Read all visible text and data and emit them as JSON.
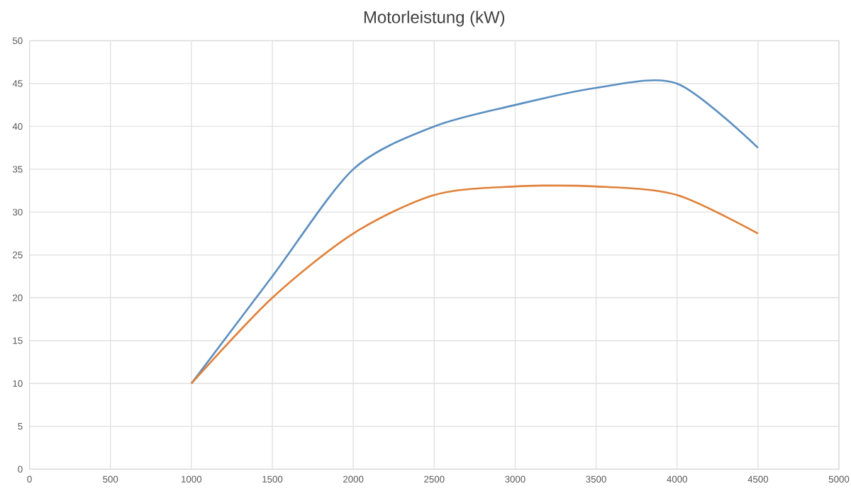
{
  "chart_data": {
    "type": "line",
    "title": "Motorleistung (kW)",
    "x": [
      1000,
      1500,
      2000,
      2500,
      3000,
      3500,
      4000,
      4500
    ],
    "series": [
      {
        "color": "#5b8fc0",
        "values": [
          10,
          22.5,
          35,
          40,
          42.5,
          44.5,
          45,
          37.5
        ]
      },
      {
        "color": "#e0813a",
        "values": [
          10,
          20,
          27.5,
          32,
          33,
          33,
          32,
          27.5
        ]
      }
    ],
    "xlim": [
      0,
      5000
    ],
    "xticks": [
      0,
      500,
      1000,
      1500,
      2000,
      2500,
      3000,
      3500,
      4000,
      4500,
      5000
    ],
    "ylim": [
      0,
      50
    ],
    "yticks": [
      0,
      5,
      10,
      15,
      20,
      25,
      30,
      35,
      40,
      45,
      50
    ],
    "grid": true,
    "marker": "none",
    "line_style": "solid"
  }
}
